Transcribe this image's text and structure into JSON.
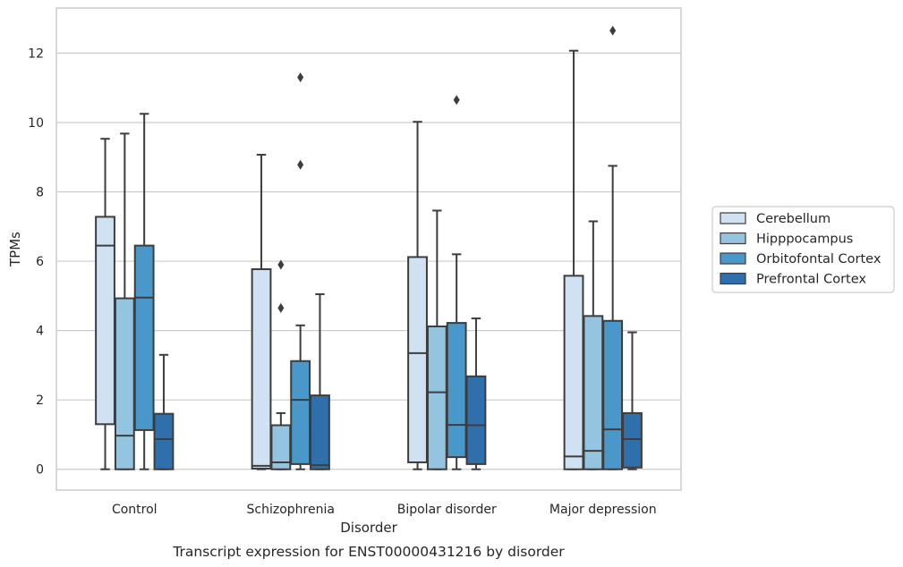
{
  "chart_data": {
    "type": "box",
    "xlabel": "Disorder",
    "ylabel": "TPMs",
    "caption": "Transcript expression for ENST00000431216 by disorder",
    "ylim": [
      -0.6,
      13.3
    ],
    "yticks": [
      0,
      2,
      4,
      6,
      8,
      10,
      12
    ],
    "grid": "horizontal",
    "legend_position": "right",
    "categories": [
      "Control",
      "Schizophrenia",
      "Bipolar disorder",
      "Major depression"
    ],
    "series": [
      {
        "name": "Cerebellum",
        "color": "#d0e1f2",
        "boxes": [
          {
            "whislo": 0.0,
            "q1": 1.3,
            "med": 6.45,
            "q3": 7.28,
            "whishi": 9.53,
            "fliers": []
          },
          {
            "whislo": 0.0,
            "q1": 0.02,
            "med": 0.1,
            "q3": 5.77,
            "whishi": 9.07,
            "fliers": []
          },
          {
            "whislo": 0.0,
            "q1": 0.2,
            "med": 3.35,
            "q3": 6.12,
            "whishi": 10.02,
            "fliers": []
          },
          {
            "whislo": 0.0,
            "q1": 0.0,
            "med": 0.37,
            "q3": 5.58,
            "whishi": 12.07,
            "fliers": []
          }
        ]
      },
      {
        "name": "Hipppocampus",
        "color": "#94c4df",
        "boxes": [
          {
            "whislo": 0.0,
            "q1": 0.0,
            "med": 0.97,
            "q3": 4.93,
            "whishi": 9.68,
            "fliers": []
          },
          {
            "whislo": 0.0,
            "q1": 0.0,
            "med": 0.2,
            "q3": 1.27,
            "whishi": 1.62,
            "fliers": [
              4.65,
              5.9
            ]
          },
          {
            "whislo": 0.0,
            "q1": 0.0,
            "med": 2.22,
            "q3": 4.12,
            "whishi": 7.46,
            "fliers": []
          },
          {
            "whislo": 0.0,
            "q1": 0.0,
            "med": 0.53,
            "q3": 4.42,
            "whishi": 7.15,
            "fliers": []
          }
        ]
      },
      {
        "name": "Orbitofontal Cortex",
        "color": "#4a98c9",
        "boxes": [
          {
            "whislo": 0.0,
            "q1": 1.13,
            "med": 4.95,
            "q3": 6.45,
            "whishi": 10.25,
            "fliers": []
          },
          {
            "whislo": 0.0,
            "q1": 0.15,
            "med": 2.0,
            "q3": 3.12,
            "whishi": 4.15,
            "fliers": [
              8.78,
              11.3
            ]
          },
          {
            "whislo": 0.0,
            "q1": 0.35,
            "med": 1.28,
            "q3": 4.22,
            "whishi": 6.2,
            "fliers": [
              10.65
            ]
          },
          {
            "whislo": 0.0,
            "q1": 0.0,
            "med": 1.15,
            "q3": 4.28,
            "whishi": 8.75,
            "fliers": [
              12.65
            ]
          }
        ]
      },
      {
        "name": "Prefrontal Cortex",
        "color": "#2f6fab",
        "boxes": [
          {
            "whislo": 0.0,
            "q1": 0.0,
            "med": 0.87,
            "q3": 1.6,
            "whishi": 3.3,
            "fliers": []
          },
          {
            "whislo": 0.0,
            "q1": 0.0,
            "med": 0.12,
            "q3": 2.13,
            "whishi": 5.05,
            "fliers": []
          },
          {
            "whislo": 0.0,
            "q1": 0.15,
            "med": 1.27,
            "q3": 2.68,
            "whishi": 4.35,
            "fliers": []
          },
          {
            "whislo": 0.0,
            "q1": 0.05,
            "med": 0.87,
            "q3": 1.62,
            "whishi": 3.95,
            "fliers": []
          }
        ]
      }
    ]
  }
}
